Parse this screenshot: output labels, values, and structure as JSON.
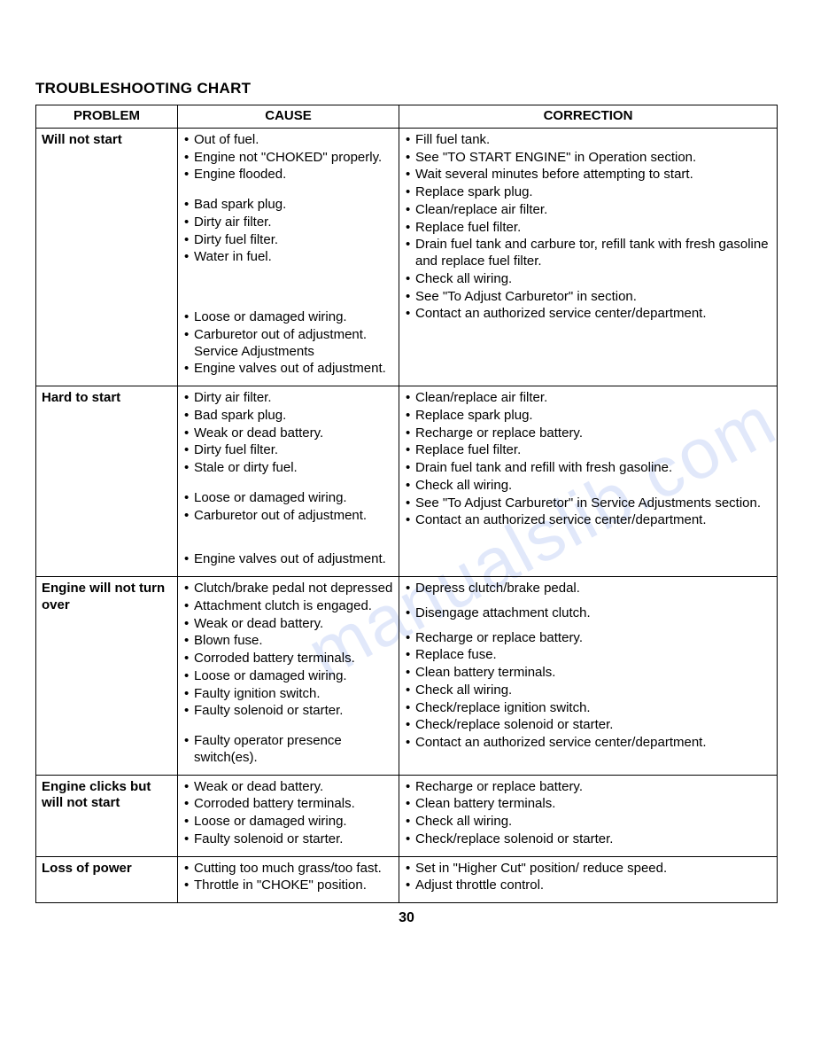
{
  "title": "TROUBLESHOOTING CHART",
  "pageNumber": "30",
  "watermark": "manualslib.com",
  "columns": [
    "PROBLEM",
    "CAUSE",
    "CORRECTION"
  ],
  "colors": {
    "border": "#000000",
    "text": "#000000",
    "background": "#ffffff"
  },
  "rows": [
    {
      "problem": "Will not start",
      "cause": [
        {
          "t": "Out of fuel."
        },
        {
          "t": "Engine not \"CHOKED\" properly."
        },
        {
          "t": "Engine flooded.",
          "gapAfter": true
        },
        {
          "t": "Bad spark plug."
        },
        {
          "t": "Dirty air filter."
        },
        {
          "t": "Dirty fuel filter."
        },
        {
          "t": "Water in fuel.",
          "gapAfter3": true
        },
        {
          "t": "Loose or damaged wiring."
        },
        {
          "t": "Carburetor out of adjustment. Service Adjustments"
        },
        {
          "t": "Engine valves out of adjustment."
        }
      ],
      "correction": [
        {
          "t": "Fill fuel tank."
        },
        {
          "t": "See \"TO START ENGINE\" in Operation section."
        },
        {
          "t": "Wait several minutes before attempting to start."
        },
        {
          "t": "Replace spark plug."
        },
        {
          "t": "Clean/replace air filter."
        },
        {
          "t": "Replace fuel filter."
        },
        {
          "t": "Drain fuel tank and carbure tor, refill tank with fresh gasoline and replace fuel filter."
        },
        {
          "t": "Check all wiring."
        },
        {
          "t": "See \"To Adjust Carburetor\" in section."
        },
        {
          "t": "Contact an authorized service center/department."
        }
      ]
    },
    {
      "problem": "Hard to start",
      "cause": [
        {
          "t": "Dirty air filter."
        },
        {
          "t": "Bad spark plug."
        },
        {
          "t": "Weak or dead battery."
        },
        {
          "t": "Dirty fuel filter."
        },
        {
          "t": "Stale or dirty fuel.",
          "gapAfter": true
        },
        {
          "t": "Loose or damaged wiring."
        },
        {
          "t": "Carburetor out of adjustment.",
          "gapAfter2": true
        },
        {
          "t": "Engine valves out of adjustment."
        }
      ],
      "correction": [
        {
          "t": "Clean/replace air filter."
        },
        {
          "t": "Replace spark plug."
        },
        {
          "t": "Recharge or replace battery."
        },
        {
          "t": "Replace fuel filter."
        },
        {
          "t": "Drain fuel tank and refill with fresh gasoline."
        },
        {
          "t": "Check all wiring."
        },
        {
          "t": "See \"To Adjust Carburetor\" in Service Adjustments section."
        },
        {
          "t": "Contact an authorized service center/department."
        }
      ]
    },
    {
      "problem": "Engine will not turn over",
      "cause": [
        {
          "t": "Clutch/brake pedal not depressed"
        },
        {
          "t": "Attachment clutch is engaged."
        },
        {
          "t": "Weak or dead battery."
        },
        {
          "t": "Blown fuse."
        },
        {
          "t": "Corroded battery terminals."
        },
        {
          "t": "Loose or damaged wiring."
        },
        {
          "t": "Faulty ignition switch."
        },
        {
          "t": "Faulty solenoid or starter.",
          "gapAfter": true
        },
        {
          "t": "Faulty operator presence switch(es)."
        }
      ],
      "correction": [
        {
          "t": "Depress clutch/brake pedal.",
          "gapAfter_half": true
        },
        {
          "t": "Disengage attachment clutch.",
          "gapAfter_half": true
        },
        {
          "t": "Recharge or replace battery."
        },
        {
          "t": "Replace fuse."
        },
        {
          "t": "Clean battery terminals."
        },
        {
          "t": "Check all wiring."
        },
        {
          "t": "Check/replace ignition switch."
        },
        {
          "t": "Check/replace solenoid or starter."
        },
        {
          "t": "Contact an authorized service center/department."
        }
      ]
    },
    {
      "problem": "Engine clicks but will not start",
      "cause": [
        {
          "t": "Weak or dead battery."
        },
        {
          "t": "Corroded battery terminals."
        },
        {
          "t": "Loose or damaged wiring."
        },
        {
          "t": "Faulty solenoid or starter."
        }
      ],
      "correction": [
        {
          "t": "Recharge or replace battery."
        },
        {
          "t": "Clean battery terminals."
        },
        {
          "t": "Check all wiring."
        },
        {
          "t": "Check/replace solenoid or starter."
        }
      ]
    },
    {
      "problem": "Loss of power",
      "cause": [
        {
          "t": "Cutting too much grass/too fast."
        },
        {
          "t": "Throttle in \"CHOKE\" position."
        }
      ],
      "correction": [
        {
          "t": "Set in \"Higher Cut\" position/ reduce speed."
        },
        {
          "t": "Adjust throttle control."
        }
      ]
    }
  ]
}
